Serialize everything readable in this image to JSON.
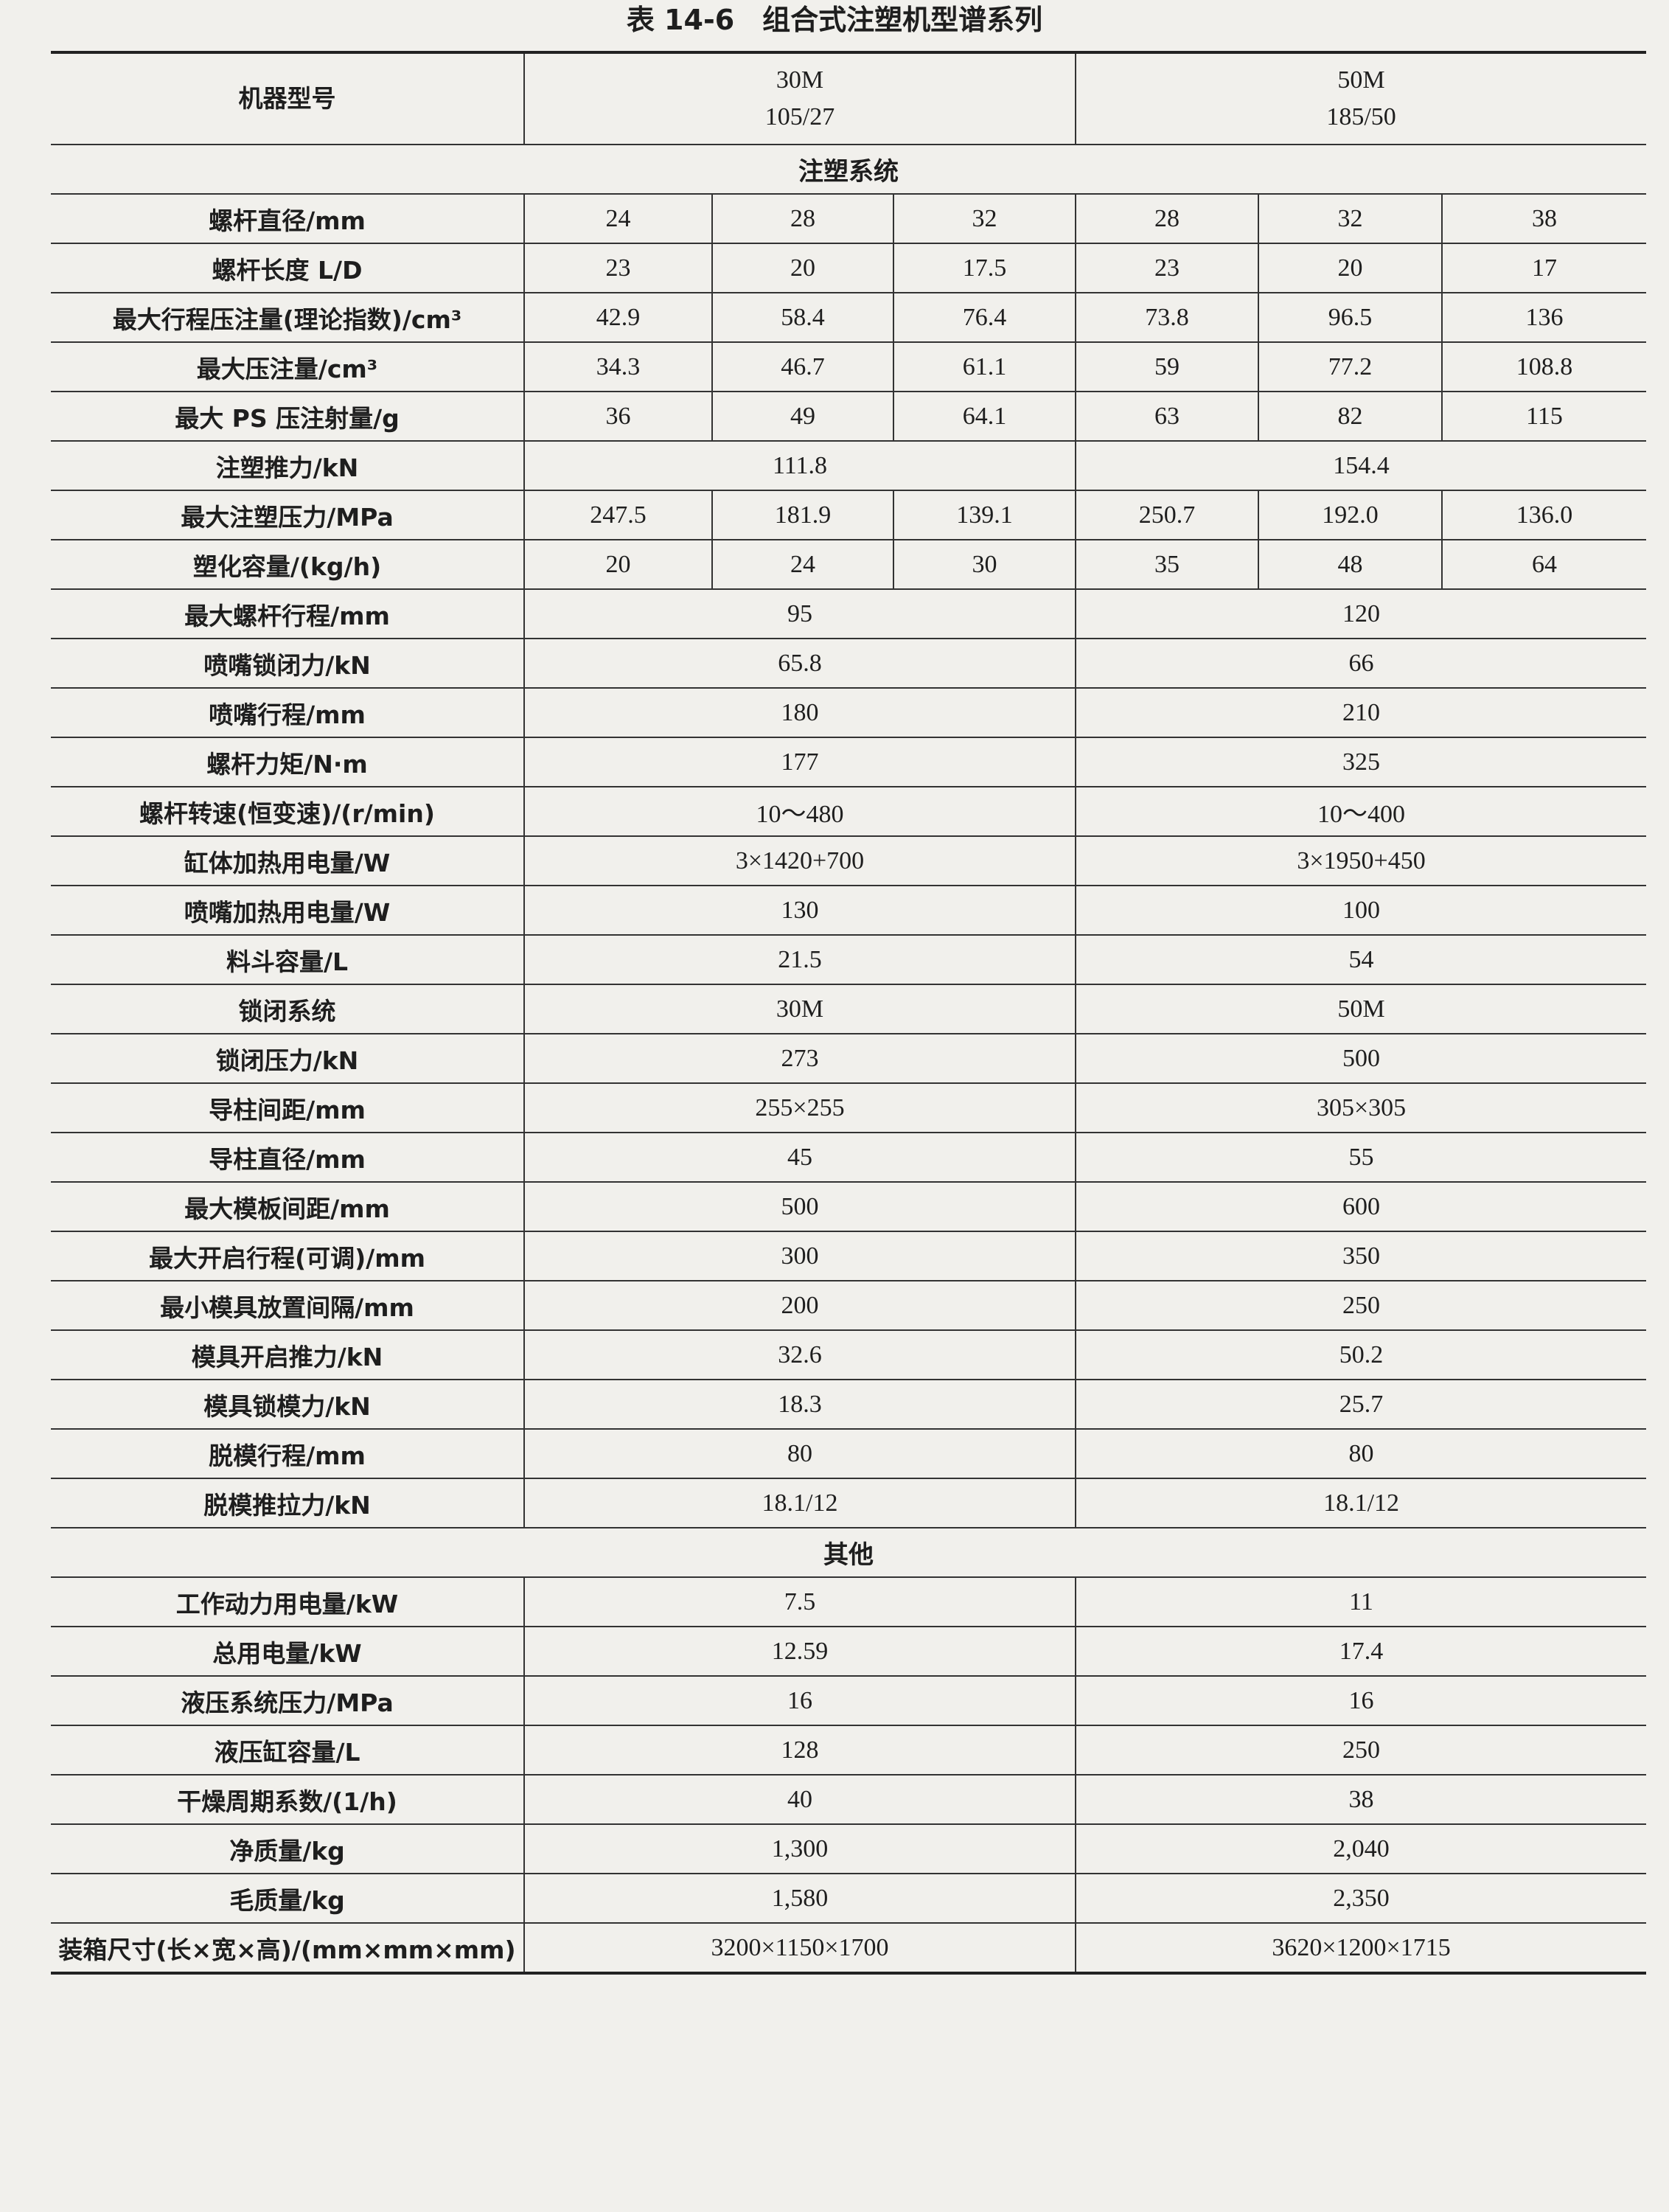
{
  "title": "表 14-6　组合式注塑机型谱系列",
  "table": {
    "header": {
      "label": "机器型号",
      "columns": [
        {
          "model": "30M",
          "sub": "105/27"
        },
        {
          "model": "50M",
          "sub": "185/50"
        }
      ]
    },
    "rows": [
      {
        "section": "注塑系统"
      },
      {
        "label": "螺杆直径/mm",
        "values": [
          "24",
          "28",
          "32",
          "28",
          "32",
          "38"
        ]
      },
      {
        "label": "螺杆长度 L/D",
        "values": [
          "23",
          "20",
          "17.5",
          "23",
          "20",
          "17"
        ]
      },
      {
        "label": "最大行程压注量(理论指数)/cm³",
        "values": [
          "42.9",
          "58.4",
          "76.4",
          "73.8",
          "96.5",
          "136"
        ]
      },
      {
        "label": "最大压注量/cm³",
        "values": [
          "34.3",
          "46.7",
          "61.1",
          "59",
          "77.2",
          "108.8"
        ]
      },
      {
        "label": "最大 PS 压注射量/g",
        "values": [
          "36",
          "49",
          "64.1",
          "63",
          "82",
          "115"
        ]
      },
      {
        "label": "注塑推力/kN",
        "values": [
          "111.8",
          "154.4"
        ]
      },
      {
        "label": "最大注塑压力/MPa",
        "values": [
          "247.5",
          "181.9",
          "139.1",
          "250.7",
          "192.0",
          "136.0"
        ]
      },
      {
        "label": "塑化容量/(kg/h)",
        "values": [
          "20",
          "24",
          "30",
          "35",
          "48",
          "64"
        ]
      },
      {
        "label": "最大螺杆行程/mm",
        "values": [
          "95",
          "120"
        ]
      },
      {
        "label": "喷嘴锁闭力/kN",
        "values": [
          "65.8",
          "66"
        ]
      },
      {
        "label": "喷嘴行程/mm",
        "values": [
          "180",
          "210"
        ]
      },
      {
        "label": "螺杆力矩/N·m",
        "values": [
          "177",
          "325"
        ]
      },
      {
        "label": "螺杆转速(恒变速)/(r/min)",
        "values": [
          "10～480",
          "10～400"
        ]
      },
      {
        "label": "缸体加热用电量/W",
        "values": [
          "3×1420+700",
          "3×1950+450"
        ]
      },
      {
        "label": "喷嘴加热用电量/W",
        "values": [
          "130",
          "100"
        ]
      },
      {
        "label": "料斗容量/L",
        "values": [
          "21.5",
          "54"
        ]
      },
      {
        "label": "锁闭系统",
        "values": [
          "30M",
          "50M"
        ]
      },
      {
        "label": "锁闭压力/kN",
        "values": [
          "273",
          "500"
        ]
      },
      {
        "label": "导柱间距/mm",
        "values": [
          "255×255",
          "305×305"
        ]
      },
      {
        "label": "导柱直径/mm",
        "values": [
          "45",
          "55"
        ]
      },
      {
        "label": "最大模板间距/mm",
        "values": [
          "500",
          "600"
        ]
      },
      {
        "label": "最大开启行程(可调)/mm",
        "values": [
          "300",
          "350"
        ]
      },
      {
        "label": "最小模具放置间隔/mm",
        "values": [
          "200",
          "250"
        ]
      },
      {
        "label": "模具开启推力/kN",
        "values": [
          "32.6",
          "50.2"
        ]
      },
      {
        "label": "模具锁模力/kN",
        "values": [
          "18.3",
          "25.7"
        ]
      },
      {
        "label": "脱模行程/mm",
        "values": [
          "80",
          "80"
        ]
      },
      {
        "label": "脱模推拉力/kN",
        "values": [
          "18.1/12",
          "18.1/12"
        ]
      },
      {
        "section": "其他"
      },
      {
        "label": "工作动力用电量/kW",
        "values": [
          "7.5",
          "11"
        ]
      },
      {
        "label": "总用电量/kW",
        "values": [
          "12.59",
          "17.4"
        ]
      },
      {
        "label": "液压系统压力/MPa",
        "values": [
          "16",
          "16"
        ]
      },
      {
        "label": "液压缸容量/L",
        "values": [
          "128",
          "250"
        ]
      },
      {
        "label": "干燥周期系数/(1/h)",
        "values": [
          "40",
          "38"
        ]
      },
      {
        "label": "净质量/kg",
        "values": [
          "1,300",
          "2,040"
        ]
      },
      {
        "label": "毛质量/kg",
        "values": [
          "1,580",
          "2,350"
        ]
      },
      {
        "label": "装箱尺寸(长×宽×高)/(mm×mm×mm)",
        "values": [
          "3200×1150×1700",
          "3620×1200×1715"
        ]
      }
    ]
  }
}
